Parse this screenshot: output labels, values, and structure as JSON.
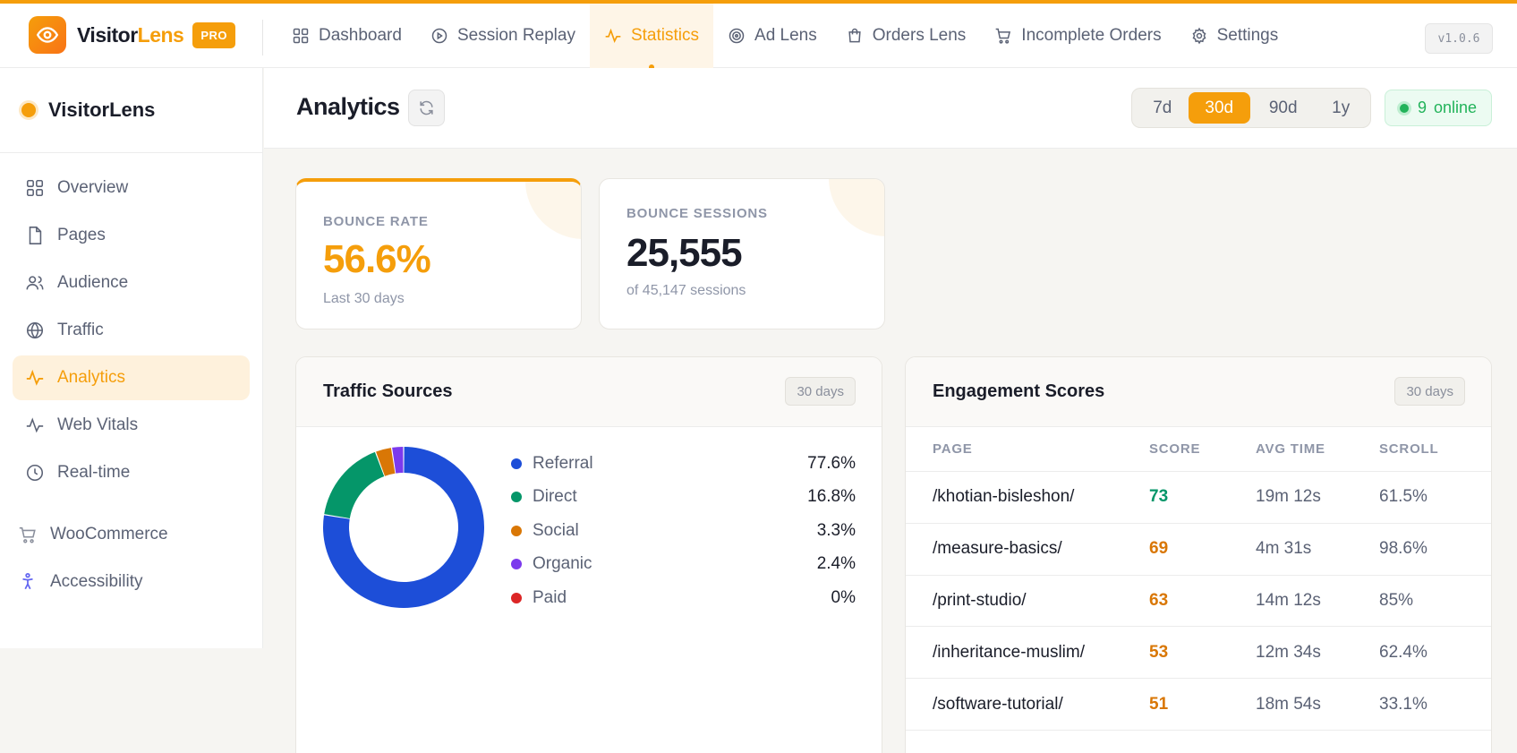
{
  "app": {
    "brand_part1": "Visitor",
    "brand_part2": "Lens",
    "pro_badge": "PRO",
    "version": "v1.0.6",
    "accent_color": "#f59e0b"
  },
  "topnav": [
    {
      "label": "Dashboard",
      "icon": "grid-icon"
    },
    {
      "label": "Session Replay",
      "icon": "play-circle-icon"
    },
    {
      "label": "Statistics",
      "icon": "activity-icon",
      "active": true
    },
    {
      "label": "Ad Lens",
      "icon": "target-icon"
    },
    {
      "label": "Orders Lens",
      "icon": "shopping-bag-icon"
    },
    {
      "label": "Incomplete Orders",
      "icon": "cart-icon"
    },
    {
      "label": "Settings",
      "icon": "gear-icon"
    }
  ],
  "sidebar": {
    "title": "VisitorLens",
    "items": [
      {
        "label": "Overview",
        "icon": "grid-icon"
      },
      {
        "label": "Pages",
        "icon": "file-icon"
      },
      {
        "label": "Audience",
        "icon": "users-icon"
      },
      {
        "label": "Traffic",
        "icon": "globe-icon"
      },
      {
        "label": "Analytics",
        "icon": "activity-icon",
        "active": true
      },
      {
        "label": "Web Vitals",
        "icon": "activity-icon"
      },
      {
        "label": "Real-time",
        "icon": "clock-icon"
      }
    ],
    "extra": [
      {
        "label": "WooCommerce",
        "icon": "cart-icon"
      },
      {
        "label": "Accessibility",
        "icon": "accessibility-icon"
      }
    ]
  },
  "header": {
    "title": "Analytics",
    "ranges": [
      "7d",
      "30d",
      "90d",
      "1y"
    ],
    "active_range": "30d",
    "online_count": "9",
    "online_label": "online"
  },
  "stats": {
    "bounce_rate": {
      "label": "BOUNCE RATE",
      "value": "56.6%",
      "sub": "Last 30 days"
    },
    "bounce_sessions": {
      "label": "BOUNCE SESSIONS",
      "value": "25,555",
      "sub": "of 45,147 sessions"
    }
  },
  "traffic_sources": {
    "title": "Traffic Sources",
    "badge": "30 days"
  },
  "chart_data": {
    "type": "pie",
    "categories": [
      "Referral",
      "Direct",
      "Social",
      "Organic",
      "Paid"
    ],
    "values": [
      77.6,
      16.8,
      3.3,
      2.4,
      0
    ],
    "value_labels": [
      "77.6%",
      "16.8%",
      "3.3%",
      "2.4%",
      "0%"
    ],
    "colors": [
      "#1d4ed8",
      "#059669",
      "#d97706",
      "#7c3aed",
      "#dc2626"
    ]
  },
  "engagement": {
    "title": "Engagement Scores",
    "badge": "30 days",
    "columns": [
      "PAGE",
      "SCORE",
      "AVG TIME",
      "SCROLL"
    ],
    "rows": [
      {
        "page": "/khotian-bisleshon/",
        "score": "73",
        "avg_time": "19m 12s",
        "scroll": "61.5%",
        "score_color": "#059669"
      },
      {
        "page": "/measure-basics/",
        "score": "69",
        "avg_time": "4m 31s",
        "scroll": "98.6%",
        "score_color": "#d97706"
      },
      {
        "page": "/print-studio/",
        "score": "63",
        "avg_time": "14m 12s",
        "scroll": "85%",
        "score_color": "#d97706"
      },
      {
        "page": "/inheritance-muslim/",
        "score": "53",
        "avg_time": "12m 34s",
        "scroll": "62.4%",
        "score_color": "#d97706"
      },
      {
        "page": "/software-tutorial/",
        "score": "51",
        "avg_time": "18m 54s",
        "scroll": "33.1%",
        "score_color": "#d97706"
      }
    ]
  }
}
